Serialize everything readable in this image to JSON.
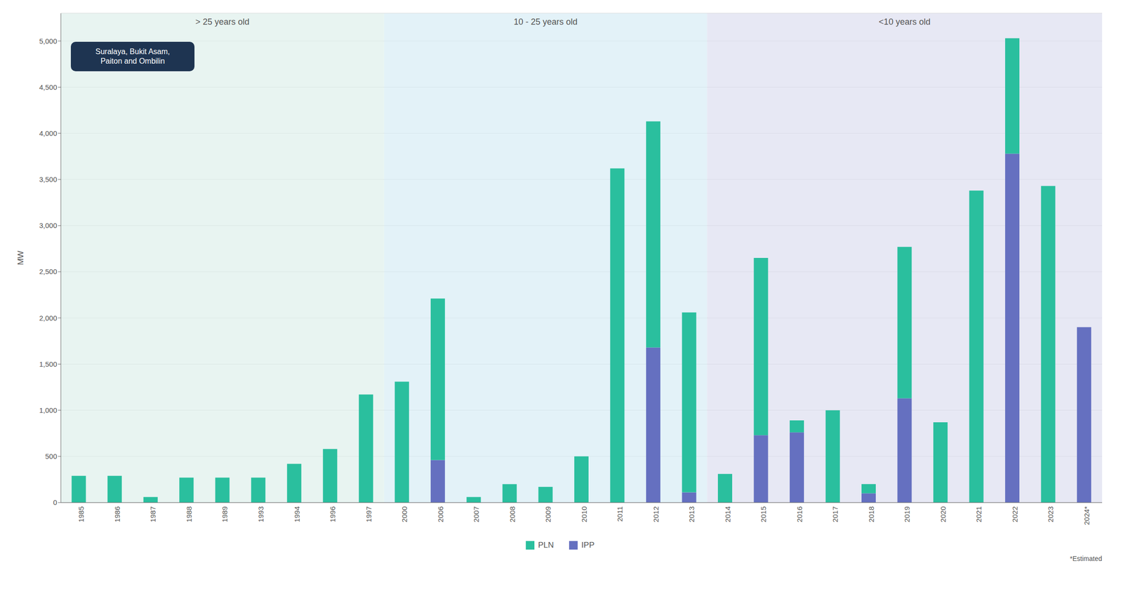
{
  "chart_data": {
    "type": "bar",
    "stacked": true,
    "categories": [
      "1985",
      "1986",
      "1987",
      "1988",
      "1989",
      "1993",
      "1994",
      "1996",
      "1997",
      "2000",
      "2006",
      "2007",
      "2008",
      "2009",
      "2010",
      "2011",
      "2012",
      "2013",
      "2014",
      "2015",
      "2016",
      "2017",
      "2018",
      "2019",
      "2020",
      "2021",
      "2022",
      "2023",
      "2024*"
    ],
    "series": [
      {
        "name": "IPP",
        "color": "#6570c0",
        "values": [
          0,
          0,
          0,
          0,
          0,
          0,
          0,
          0,
          0,
          0,
          460,
          0,
          0,
          0,
          0,
          0,
          1680,
          110,
          0,
          730,
          760,
          0,
          100,
          1130,
          0,
          0,
          3780,
          0,
          1900
        ]
      },
      {
        "name": "PLN",
        "color": "#2abf9e",
        "values": [
          290,
          290,
          60,
          270,
          270,
          270,
          420,
          580,
          1170,
          1310,
          1750,
          60,
          200,
          170,
          500,
          3620,
          2450,
          1950,
          310,
          1920,
          130,
          1000,
          100,
          1640,
          870,
          3380,
          1250,
          3430,
          0
        ]
      }
    ],
    "ylabel": "MW",
    "ylim": [
      0,
      5300
    ],
    "yticks": [
      0,
      500,
      {
        "value": 1000,
        "label": "1,000"
      },
      {
        "value": 1500,
        "label": "1,500"
      },
      {
        "value": 2000,
        "label": "2,000"
      },
      {
        "value": 2500,
        "label": "2,500"
      },
      {
        "value": 3000,
        "label": "3,000"
      },
      {
        "value": 3500,
        "label": "3,500"
      },
      {
        "value": 4000,
        "label": "4,000"
      },
      {
        "value": 4500,
        "label": "4,500"
      },
      {
        "value": 5000,
        "label": "5,000"
      }
    ],
    "grid": true,
    "legend": "bottom",
    "zones": [
      {
        "label": "> 25 years old",
        "color": "#e0f0ec",
        "from": "1985",
        "to": "1997"
      },
      {
        "label": "10 - 25 years old",
        "color": "#daeef5",
        "from": "2000",
        "to": "2013"
      },
      {
        "label": "<10 years old",
        "color": "#dfe0f0",
        "from": "2014",
        "to": "2024*"
      }
    ],
    "annotation": {
      "text": "Suralaya, Bukit Asam,\nPaiton and Ombilin",
      "color": "#1e3451"
    },
    "note": "*Estimated"
  }
}
